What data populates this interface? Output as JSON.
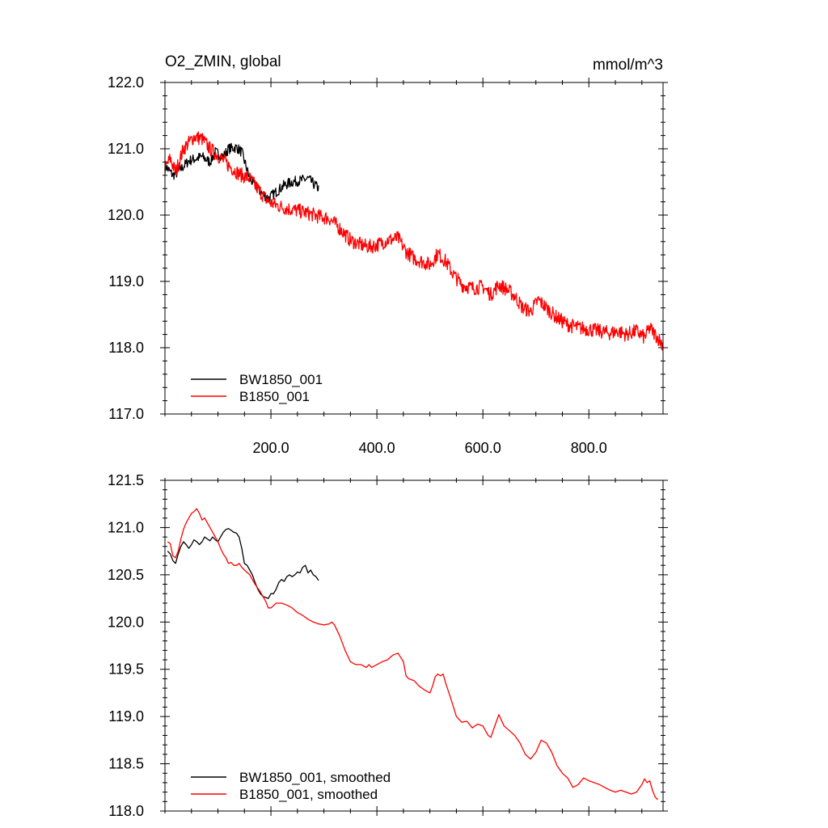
{
  "chart_data": [
    {
      "type": "line",
      "title": "O2_ZMIN, global",
      "units": "mmol/m^3",
      "ylim": [
        117.0,
        122.0
      ],
      "xlim": [
        0,
        940
      ],
      "y_ticks": [
        117.0,
        118.0,
        119.0,
        120.0,
        121.0,
        122.0
      ],
      "y_tick_labels": [
        "117.0",
        "118.0",
        "119.0",
        "120.0",
        "121.0",
        "122.0"
      ],
      "x_ticks": [
        200,
        400,
        600,
        800
      ],
      "x_tick_labels": [
        "200.0",
        "400.0",
        "600.0",
        "800.0"
      ],
      "legend_position": "bottom-left",
      "series": [
        {
          "name": "BW1850_001",
          "color": "#000000",
          "noise": 0.08,
          "points": [
            [
              0,
              120.75
            ],
            [
              15,
              120.6
            ],
            [
              25,
              120.65
            ],
            [
              45,
              120.82
            ],
            [
              70,
              120.88
            ],
            [
              85,
              120.8
            ],
            [
              95,
              120.95
            ],
            [
              110,
              120.88
            ],
            [
              120,
              121.0
            ],
            [
              135,
              121.02
            ],
            [
              145,
              120.95
            ],
            [
              160,
              120.55
            ],
            [
              180,
              120.35
            ],
            [
              195,
              120.25
            ],
            [
              210,
              120.35
            ],
            [
              225,
              120.45
            ],
            [
              240,
              120.5
            ],
            [
              255,
              120.52
            ],
            [
              270,
              120.55
            ],
            [
              290,
              120.4
            ]
          ]
        },
        {
          "name": "B1850_001",
          "color": "#ff0000",
          "noise": 0.11,
          "points": [
            [
              0,
              120.7
            ],
            [
              10,
              120.85
            ],
            [
              20,
              120.65
            ],
            [
              35,
              121.0
            ],
            [
              55,
              121.18
            ],
            [
              70,
              121.15
            ],
            [
              85,
              121.0
            ],
            [
              100,
              120.9
            ],
            [
              120,
              120.75
            ],
            [
              140,
              120.62
            ],
            [
              160,
              120.55
            ],
            [
              175,
              120.4
            ],
            [
              195,
              120.2
            ],
            [
              210,
              120.15
            ],
            [
              230,
              120.1
            ],
            [
              260,
              120.05
            ],
            [
              290,
              119.98
            ],
            [
              310,
              119.95
            ],
            [
              330,
              119.8
            ],
            [
              350,
              119.62
            ],
            [
              370,
              119.55
            ],
            [
              385,
              119.52
            ],
            [
              400,
              119.55
            ],
            [
              420,
              119.62
            ],
            [
              440,
              119.65
            ],
            [
              455,
              119.45
            ],
            [
              470,
              119.35
            ],
            [
              485,
              119.3
            ],
            [
              500,
              119.25
            ],
            [
              515,
              119.42
            ],
            [
              530,
              119.3
            ],
            [
              545,
              119.1
            ],
            [
              560,
              118.95
            ],
            [
              580,
              118.9
            ],
            [
              600,
              118.92
            ],
            [
              615,
              118.8
            ],
            [
              630,
              118.95
            ],
            [
              645,
              118.88
            ],
            [
              660,
              118.78
            ],
            [
              675,
              118.6
            ],
            [
              690,
              118.55
            ],
            [
              705,
              118.72
            ],
            [
              720,
              118.6
            ],
            [
              740,
              118.45
            ],
            [
              760,
              118.35
            ],
            [
              780,
              118.3
            ],
            [
              800,
              118.28
            ],
            [
              820,
              118.25
            ],
            [
              840,
              118.22
            ],
            [
              855,
              118.25
            ],
            [
              870,
              118.2
            ],
            [
              890,
              118.25
            ],
            [
              905,
              118.15
            ],
            [
              915,
              118.3
            ],
            [
              925,
              118.2
            ],
            [
              940,
              118.05
            ]
          ]
        }
      ]
    },
    {
      "type": "line",
      "title": "",
      "ylim": [
        118.0,
        121.5
      ],
      "xlim": [
        0,
        940
      ],
      "y_ticks": [
        118.0,
        118.5,
        119.0,
        119.5,
        120.0,
        120.5,
        121.0,
        121.5
      ],
      "y_tick_labels": [
        "118.0",
        "118.5",
        "119.0",
        "119.5",
        "120.0",
        "120.5",
        "121.0",
        "121.5"
      ],
      "x_ticks": [
        200,
        400,
        600,
        800
      ],
      "x_tick_labels": [],
      "legend_position": "bottom-left",
      "series": [
        {
          "name": "BW1850_001, smoothed",
          "color": "#000000",
          "points": [
            [
              5,
              120.75
            ],
            [
              10,
              120.72
            ],
            [
              15,
              120.65
            ],
            [
              20,
              120.62
            ],
            [
              25,
              120.72
            ],
            [
              30,
              120.8
            ],
            [
              35,
              120.85
            ],
            [
              40,
              120.82
            ],
            [
              45,
              120.78
            ],
            [
              50,
              120.82
            ],
            [
              55,
              120.87
            ],
            [
              60,
              120.85
            ],
            [
              65,
              120.82
            ],
            [
              70,
              120.85
            ],
            [
              75,
              120.9
            ],
            [
              80,
              120.88
            ],
            [
              85,
              120.86
            ],
            [
              90,
              120.9
            ],
            [
              95,
              120.87
            ],
            [
              100,
              120.85
            ],
            [
              105,
              120.9
            ],
            [
              110,
              120.95
            ],
            [
              115,
              120.98
            ],
            [
              120,
              120.99
            ],
            [
              125,
              120.97
            ],
            [
              130,
              120.95
            ],
            [
              135,
              120.94
            ],
            [
              140,
              120.9
            ],
            [
              145,
              120.78
            ],
            [
              150,
              120.62
            ],
            [
              155,
              120.6
            ],
            [
              160,
              120.55
            ],
            [
              165,
              120.5
            ],
            [
              170,
              120.42
            ],
            [
              175,
              120.35
            ],
            [
              180,
              120.3
            ],
            [
              185,
              120.27
            ],
            [
              190,
              120.26
            ],
            [
              195,
              120.25
            ],
            [
              200,
              120.3
            ],
            [
              205,
              120.3
            ],
            [
              210,
              120.35
            ],
            [
              215,
              120.42
            ],
            [
              220,
              120.45
            ],
            [
              225,
              120.43
            ],
            [
              230,
              120.48
            ],
            [
              235,
              120.5
            ],
            [
              240,
              120.48
            ],
            [
              245,
              120.5
            ],
            [
              250,
              120.53
            ],
            [
              255,
              120.52
            ],
            [
              260,
              120.58
            ],
            [
              265,
              120.6
            ],
            [
              270,
              120.52
            ],
            [
              275,
              120.55
            ],
            [
              280,
              120.5
            ],
            [
              285,
              120.48
            ],
            [
              290,
              120.44
            ]
          ]
        },
        {
          "name": "B1850_001, smoothed",
          "color": "#ff0000",
          "points": [
            [
              5,
              120.85
            ],
            [
              10,
              120.83
            ],
            [
              15,
              120.7
            ],
            [
              20,
              120.68
            ],
            [
              25,
              120.75
            ],
            [
              30,
              120.88
            ],
            [
              35,
              120.98
            ],
            [
              40,
              121.05
            ],
            [
              45,
              121.1
            ],
            [
              50,
              121.15
            ],
            [
              55,
              121.17
            ],
            [
              60,
              121.2
            ],
            [
              65,
              121.15
            ],
            [
              70,
              121.08
            ],
            [
              75,
              121.1
            ],
            [
              80,
              121.05
            ],
            [
              85,
              121.0
            ],
            [
              90,
              120.95
            ],
            [
              95,
              120.9
            ],
            [
              100,
              120.85
            ],
            [
              105,
              120.78
            ],
            [
              110,
              120.72
            ],
            [
              115,
              120.68
            ],
            [
              120,
              120.62
            ],
            [
              125,
              120.63
            ],
            [
              130,
              120.6
            ],
            [
              135,
              120.6
            ],
            [
              140,
              120.62
            ],
            [
              145,
              120.58
            ],
            [
              150,
              120.55
            ],
            [
              160,
              120.5
            ],
            [
              170,
              120.4
            ],
            [
              180,
              120.32
            ],
            [
              190,
              120.22
            ],
            [
              195,
              120.15
            ],
            [
              200,
              120.15
            ],
            [
              210,
              120.2
            ],
            [
              220,
              120.2
            ],
            [
              230,
              120.18
            ],
            [
              240,
              120.15
            ],
            [
              250,
              120.1
            ],
            [
              260,
              120.07
            ],
            [
              270,
              120.03
            ],
            [
              280,
              120.0
            ],
            [
              290,
              119.98
            ],
            [
              300,
              119.97
            ],
            [
              310,
              119.98
            ],
            [
              315,
              120.0
            ],
            [
              320,
              119.97
            ],
            [
              330,
              119.85
            ],
            [
              340,
              119.7
            ],
            [
              350,
              119.58
            ],
            [
              360,
              119.55
            ],
            [
              370,
              119.55
            ],
            [
              380,
              119.52
            ],
            [
              385,
              119.55
            ],
            [
              390,
              119.52
            ],
            [
              400,
              119.55
            ],
            [
              410,
              119.58
            ],
            [
              420,
              119.6
            ],
            [
              430,
              119.65
            ],
            [
              440,
              119.67
            ],
            [
              450,
              119.58
            ],
            [
              455,
              119.43
            ],
            [
              460,
              119.4
            ],
            [
              470,
              119.38
            ],
            [
              480,
              119.32
            ],
            [
              490,
              119.28
            ],
            [
              500,
              119.25
            ],
            [
              505,
              119.32
            ],
            [
              510,
              119.42
            ],
            [
              515,
              119.45
            ],
            [
              520,
              119.43
            ],
            [
              525,
              119.45
            ],
            [
              530,
              119.35
            ],
            [
              540,
              119.18
            ],
            [
              550,
              119.0
            ],
            [
              560,
              118.94
            ],
            [
              570,
              118.95
            ],
            [
              580,
              118.88
            ],
            [
              590,
              118.92
            ],
            [
              600,
              118.9
            ],
            [
              610,
              118.8
            ],
            [
              615,
              118.78
            ],
            [
              620,
              118.86
            ],
            [
              630,
              119.02
            ],
            [
              640,
              118.9
            ],
            [
              650,
              118.85
            ],
            [
              660,
              118.8
            ],
            [
              670,
              118.72
            ],
            [
              680,
              118.6
            ],
            [
              690,
              118.55
            ],
            [
              700,
              118.62
            ],
            [
              710,
              118.75
            ],
            [
              720,
              118.72
            ],
            [
              730,
              118.62
            ],
            [
              740,
              118.48
            ],
            [
              750,
              118.4
            ],
            [
              760,
              118.35
            ],
            [
              770,
              118.25
            ],
            [
              780,
              118.28
            ],
            [
              790,
              118.35
            ],
            [
              800,
              118.32
            ],
            [
              810,
              118.3
            ],
            [
              820,
              118.28
            ],
            [
              830,
              118.25
            ],
            [
              840,
              118.22
            ],
            [
              850,
              118.2
            ],
            [
              860,
              118.22
            ],
            [
              870,
              118.2
            ],
            [
              880,
              118.18
            ],
            [
              890,
              118.2
            ],
            [
              900,
              118.28
            ],
            [
              905,
              118.34
            ],
            [
              910,
              118.3
            ],
            [
              915,
              118.32
            ],
            [
              920,
              118.22
            ],
            [
              925,
              118.15
            ],
            [
              930,
              118.12
            ]
          ]
        }
      ]
    }
  ]
}
